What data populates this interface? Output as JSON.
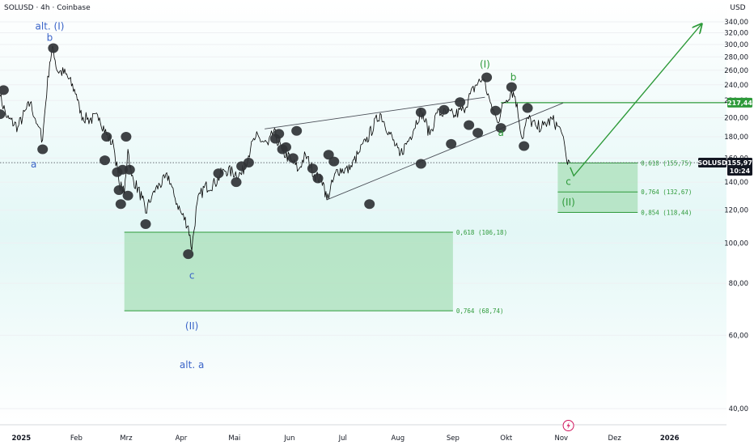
{
  "header": {
    "title": "SOLUSD · 4h · Coinbase",
    "currency": "USD"
  },
  "colors": {
    "blue": "#2962ff",
    "blue_label": "#3a64c8",
    "green": "#2e9a3a",
    "green_box": "#a8dfb8",
    "price": "#000000",
    "pivot": "#303336",
    "grid": "#eef0f3",
    "bg": "#e3f7f6"
  },
  "chart_data": {
    "type": "line",
    "y_axis": {
      "range": [
        28,
        350
      ],
      "ticks": [
        40,
        60,
        80,
        100,
        120,
        140,
        160,
        180,
        200,
        220,
        240,
        260,
        280,
        300,
        320,
        340
      ]
    },
    "x_axis": {
      "range": [
        "2024-12-20",
        "2026-02-02"
      ],
      "ticks": [
        {
          "label": "2025",
          "date": "2025-01-01"
        },
        {
          "label": "Feb",
          "date": "2025-02-01"
        },
        {
          "label": "Mrz",
          "date": "2025-03-01"
        },
        {
          "label": "Apr",
          "date": "2025-04-01"
        },
        {
          "label": "Mai",
          "date": "2025-05-01"
        },
        {
          "label": "Jun",
          "date": "2025-06-01"
        },
        {
          "label": "Jul",
          "date": "2025-07-01"
        },
        {
          "label": "Aug",
          "date": "2025-08-01"
        },
        {
          "label": "Sep",
          "date": "2025-09-01"
        },
        {
          "label": "Okt",
          "date": "2025-10-01"
        },
        {
          "label": "Nov",
          "date": "2025-11-01"
        },
        {
          "label": "Dez",
          "date": "2025-12-01"
        },
        {
          "label": "2026",
          "date": "2026-01-01"
        }
      ]
    },
    "series": [
      {
        "points": [
          [
            "2024-12-20",
            225
          ],
          [
            "2024-12-24",
            200
          ],
          [
            "2024-12-30",
            190
          ],
          [
            "2025-01-06",
            217
          ],
          [
            "2025-01-10",
            193
          ],
          [
            "2025-01-13",
            177
          ],
          [
            "2025-01-17",
            272
          ],
          [
            "2025-01-19",
            294
          ],
          [
            "2025-01-21",
            260
          ],
          [
            "2025-01-26",
            255
          ],
          [
            "2025-02-01",
            228
          ],
          [
            "2025-02-03",
            205
          ],
          [
            "2025-02-07",
            198
          ],
          [
            "2025-02-14",
            200
          ],
          [
            "2025-02-18",
            182
          ],
          [
            "2025-02-22",
            171
          ],
          [
            "2025-02-25",
            140
          ],
          [
            "2025-02-28",
            131
          ],
          [
            "2025-03-02",
            168
          ],
          [
            "2025-03-04",
            145
          ],
          [
            "2025-03-10",
            128
          ],
          [
            "2025-03-12",
            118
          ],
          [
            "2025-03-16",
            132
          ],
          [
            "2025-03-20",
            138
          ],
          [
            "2025-03-25",
            145
          ],
          [
            "2025-03-28",
            130
          ],
          [
            "2025-04-01",
            118
          ],
          [
            "2025-04-05",
            110
          ],
          [
            "2025-04-07",
            96
          ],
          [
            "2025-04-10",
            125
          ],
          [
            "2025-04-14",
            136
          ],
          [
            "2025-04-20",
            139
          ],
          [
            "2025-04-25",
            150
          ],
          [
            "2025-04-30",
            148
          ],
          [
            "2025-05-05",
            146
          ],
          [
            "2025-05-10",
            168
          ],
          [
            "2025-05-13",
            180
          ],
          [
            "2025-05-20",
            172
          ],
          [
            "2025-05-23",
            185
          ],
          [
            "2025-05-28",
            166
          ],
          [
            "2025-06-02",
            158
          ],
          [
            "2025-06-06",
            150
          ],
          [
            "2025-06-10",
            163
          ],
          [
            "2025-06-15",
            146
          ],
          [
            "2025-06-20",
            140
          ],
          [
            "2025-06-22",
            127
          ],
          [
            "2025-06-28",
            150
          ],
          [
            "2025-07-05",
            150
          ],
          [
            "2025-07-10",
            165
          ],
          [
            "2025-07-14",
            175
          ],
          [
            "2025-07-22",
            205
          ],
          [
            "2025-07-27",
            185
          ],
          [
            "2025-08-02",
            162
          ],
          [
            "2025-08-08",
            180
          ],
          [
            "2025-08-14",
            208
          ],
          [
            "2025-08-19",
            182
          ],
          [
            "2025-08-23",
            205
          ],
          [
            "2025-08-28",
            205
          ],
          [
            "2025-09-02",
            203
          ],
          [
            "2025-09-07",
            210
          ],
          [
            "2025-09-14",
            240
          ],
          [
            "2025-09-18",
            248
          ],
          [
            "2025-09-22",
            218
          ],
          [
            "2025-09-26",
            195
          ],
          [
            "2025-09-30",
            218
          ],
          [
            "2025-10-04",
            232
          ],
          [
            "2025-10-06",
            225
          ],
          [
            "2025-10-10",
            178
          ],
          [
            "2025-10-13",
            200
          ],
          [
            "2025-10-18",
            190
          ],
          [
            "2025-10-22",
            192
          ],
          [
            "2025-10-27",
            198
          ],
          [
            "2025-11-01",
            185
          ],
          [
            "2025-11-04",
            158
          ],
          [
            "2025-11-06",
            155.97
          ]
        ]
      }
    ],
    "current_price": {
      "label": "SOLUSD",
      "value": "155,97",
      "time": "10:24",
      "price": 155.97
    },
    "level_badge": {
      "label": "217,44",
      "price": 217.44
    },
    "projection": [
      [
        "2025-11-06",
        152
      ],
      [
        "2025-11-08",
        145
      ],
      [
        "2026-01-19",
        336
      ]
    ],
    "wedge_lines": [
      [
        [
          "2025-05-18",
          188
        ],
        [
          "2025-09-19",
          224
        ]
      ],
      [
        [
          "2025-06-22",
          127
        ],
        [
          "2025-11-02",
          217
        ]
      ]
    ],
    "resistance_line": {
      "from": "2025-09-28",
      "to": "2026-02-02",
      "price": 217.44
    },
    "pivots": [
      [
        "2024-12-22",
        233
      ],
      [
        "2024-12-20",
        204
      ],
      [
        "2025-01-13",
        168
      ],
      [
        "2025-01-19",
        294
      ],
      [
        "2025-02-18",
        180
      ],
      [
        "2025-02-17",
        158
      ],
      [
        "2025-02-24",
        148
      ],
      [
        "2025-02-25",
        134
      ],
      [
        "2025-02-26",
        124
      ],
      [
        "2025-02-27",
        150
      ],
      [
        "2025-03-01",
        180
      ],
      [
        "2025-03-02",
        130
      ],
      [
        "2025-03-03",
        150
      ],
      [
        "2025-03-12",
        111
      ],
      [
        "2025-04-05",
        94
      ],
      [
        "2025-04-22",
        147
      ],
      [
        "2025-05-02",
        140
      ],
      [
        "2025-05-05",
        153
      ],
      [
        "2025-05-09",
        156
      ],
      [
        "2025-05-24",
        178
      ],
      [
        "2025-05-26",
        183
      ],
      [
        "2025-05-28",
        168
      ],
      [
        "2025-05-30",
        170
      ],
      [
        "2025-06-03",
        160
      ],
      [
        "2025-06-05",
        186
      ],
      [
        "2025-06-14",
        151
      ],
      [
        "2025-06-17",
        143
      ],
      [
        "2025-06-23",
        163
      ],
      [
        "2025-06-26",
        157
      ],
      [
        "2025-07-16",
        124
      ],
      [
        "2025-08-14",
        155
      ],
      [
        "2025-08-14",
        206
      ],
      [
        "2025-08-27",
        209
      ],
      [
        "2025-08-31",
        173
      ],
      [
        "2025-09-05",
        218
      ],
      [
        "2025-09-10",
        192
      ],
      [
        "2025-09-15",
        184
      ],
      [
        "2025-09-20",
        250
      ],
      [
        "2025-09-25",
        208
      ],
      [
        "2025-09-28",
        189
      ],
      [
        "2025-10-04",
        237
      ],
      [
        "2025-10-13",
        211
      ],
      [
        "2025-10-11",
        171
      ]
    ],
    "fib_zones": [
      {
        "from": "2025-02-28",
        "to": "2025-09-01",
        "top": 106.18,
        "bottom": 68.74
      },
      {
        "from": "2025-10-30",
        "to": "2025-12-14",
        "top": 155.75,
        "bottom": 118.44
      }
    ],
    "fib_lines": [
      {
        "from": "2025-02-28",
        "to": "2025-09-01",
        "price": 106.18,
        "label": "0,618 (106,18)"
      },
      {
        "from": "2025-02-28",
        "to": "2025-09-01",
        "price": 68.74,
        "label": "0,764 (68,74)"
      },
      {
        "from": "2025-10-30",
        "to": "2025-12-14",
        "price": 155.75,
        "label": "0,618 (155,75)"
      },
      {
        "from": "2025-10-30",
        "to": "2025-12-14",
        "price": 132.67,
        "label": "0,764 (132,67)"
      },
      {
        "from": "2025-10-30",
        "to": "2025-12-14",
        "price": 118.44,
        "label": "0,854 (118,44)"
      }
    ],
    "wave_labels": [
      {
        "text": "alt. (I)",
        "date": "2025-01-17",
        "price": 326,
        "color": "blue"
      },
      {
        "text": "b",
        "date": "2025-01-17",
        "price": 306,
        "color": "blue"
      },
      {
        "text": "a",
        "date": "2025-01-08",
        "price": 152,
        "color": "blue"
      },
      {
        "text": "c",
        "date": "2025-04-07",
        "price": 82,
        "color": "blue"
      },
      {
        "text": "(II)",
        "date": "2025-04-07",
        "price": 62,
        "color": "blue"
      },
      {
        "text": "alt. a",
        "date": "2025-04-07",
        "price": 50,
        "color": "blue"
      },
      {
        "text": "(I)",
        "date": "2025-09-19",
        "price": 264,
        "color": "green"
      },
      {
        "text": "b",
        "date": "2025-10-05",
        "price": 246,
        "color": "green"
      },
      {
        "text": "a",
        "date": "2025-09-28",
        "price": 181,
        "color": "green"
      },
      {
        "text": "c",
        "date": "2025-11-05",
        "price": 138,
        "color": "green"
      },
      {
        "text": "(II)",
        "date": "2025-11-05",
        "price": 123,
        "color": "green"
      }
    ],
    "event_marker": {
      "date": "2025-11-05",
      "icon": "lightning-icon"
    }
  }
}
